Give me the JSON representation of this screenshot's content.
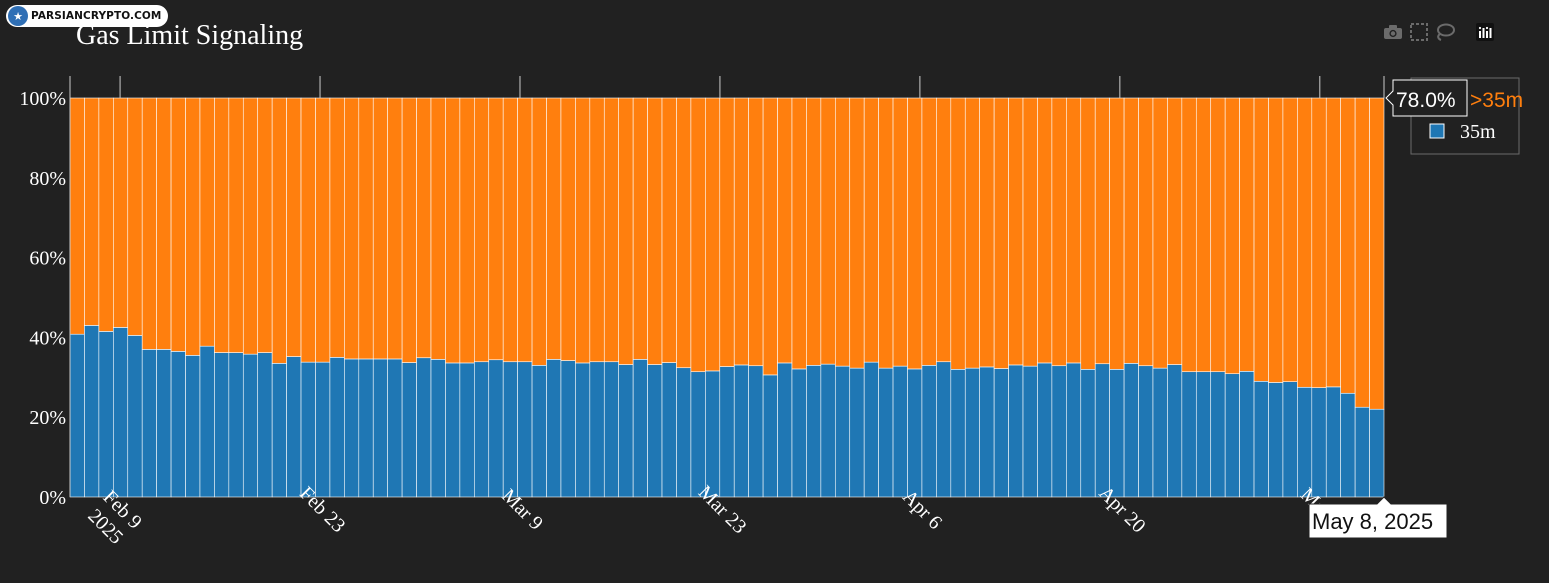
{
  "watermark": {
    "text": "PARSIANCRYPTO.COM"
  },
  "title": "Gas Limit Signaling",
  "modebar": {
    "icons": [
      "camera-icon",
      "box-select-icon",
      "lasso-select-icon",
      "plotly-logo-icon"
    ]
  },
  "colors": {
    "background": "#212121",
    "series_35m": "#1f77b4",
    "series_gt35m": "#ff7f0e",
    "text": "#ffffff",
    "legend_bg": "#212121",
    "legend_border": "#6a6a6a"
  },
  "hover": {
    "y_label_value": "78.0%",
    "y_label_series": ">35m",
    "x_label": "May 8, 2025"
  },
  "chart_data": {
    "type": "bar",
    "stacked": true,
    "normalized": true,
    "title": "Gas Limit Signaling",
    "x_start": "2025-02-06",
    "x_end": "2025-05-08",
    "x_tick_labels": [
      "Feb 9\n2025",
      "Feb 23",
      "Mar 9",
      "Mar 23",
      "Apr 6",
      "Apr 20",
      "May 4"
    ],
    "y_tick_labels": [
      "0%",
      "20%",
      "40%",
      "60%",
      "80%",
      "100%"
    ],
    "ylim": [
      0,
      100
    ],
    "grid": false,
    "legend_position": "top-right",
    "series": [
      {
        "name": "35m",
        "color": "#1f77b4",
        "values": [
          40.8,
          43.0,
          41.5,
          42.5,
          40.5,
          37.0,
          37.0,
          36.5,
          35.5,
          37.8,
          36.2,
          36.2,
          35.8,
          36.2,
          33.5,
          35.2,
          33.8,
          33.8,
          35.0,
          34.6,
          34.6,
          34.6,
          34.6,
          33.7,
          34.9,
          34.5,
          33.6,
          33.6,
          33.9,
          34.4,
          33.9,
          33.9,
          33.0,
          34.5,
          34.2,
          33.6,
          33.9,
          33.9,
          33.2,
          34.5,
          33.2,
          33.7,
          32.4,
          31.4,
          31.6,
          32.7,
          33.1,
          32.9,
          30.6,
          33.6,
          32.1,
          33.0,
          33.3,
          32.8,
          32.3,
          33.8,
          32.3,
          32.8,
          32.1,
          33.0,
          33.9,
          32.0,
          32.3,
          32.6,
          32.2,
          33.1,
          32.8,
          33.6,
          32.9,
          33.6,
          32.0,
          33.4,
          32.0,
          33.5,
          32.9,
          32.3,
          33.2,
          31.4,
          31.4,
          31.4,
          30.9,
          31.5,
          29.0,
          28.7,
          28.9,
          27.5,
          27.4,
          27.6,
          26.0,
          22.5,
          22.0
        ]
      },
      {
        "name": ">35m",
        "color": "#ff7f0e",
        "values": [
          59.2,
          57.0,
          58.5,
          57.5,
          59.5,
          63.0,
          63.0,
          63.5,
          64.5,
          62.2,
          63.8,
          63.8,
          64.2,
          63.8,
          66.5,
          64.8,
          66.2,
          66.2,
          65.0,
          65.4,
          65.4,
          65.4,
          65.4,
          66.3,
          65.1,
          65.5,
          66.4,
          66.4,
          66.1,
          65.6,
          66.1,
          66.1,
          67.0,
          65.5,
          65.8,
          66.4,
          66.1,
          66.1,
          66.8,
          65.5,
          66.8,
          66.3,
          67.6,
          68.6,
          68.4,
          67.3,
          66.9,
          67.1,
          69.4,
          66.4,
          67.9,
          67.0,
          66.7,
          67.2,
          67.7,
          66.2,
          67.7,
          67.2,
          67.9,
          67.0,
          66.1,
          68.0,
          67.7,
          67.4,
          67.8,
          66.9,
          67.2,
          66.4,
          67.1,
          66.4,
          68.0,
          66.6,
          68.0,
          66.5,
          67.1,
          67.7,
          66.8,
          68.6,
          68.6,
          68.6,
          69.1,
          68.5,
          71.0,
          71.3,
          71.1,
          72.5,
          72.6,
          72.4,
          74.0,
          77.5,
          78.0
        ]
      }
    ]
  }
}
